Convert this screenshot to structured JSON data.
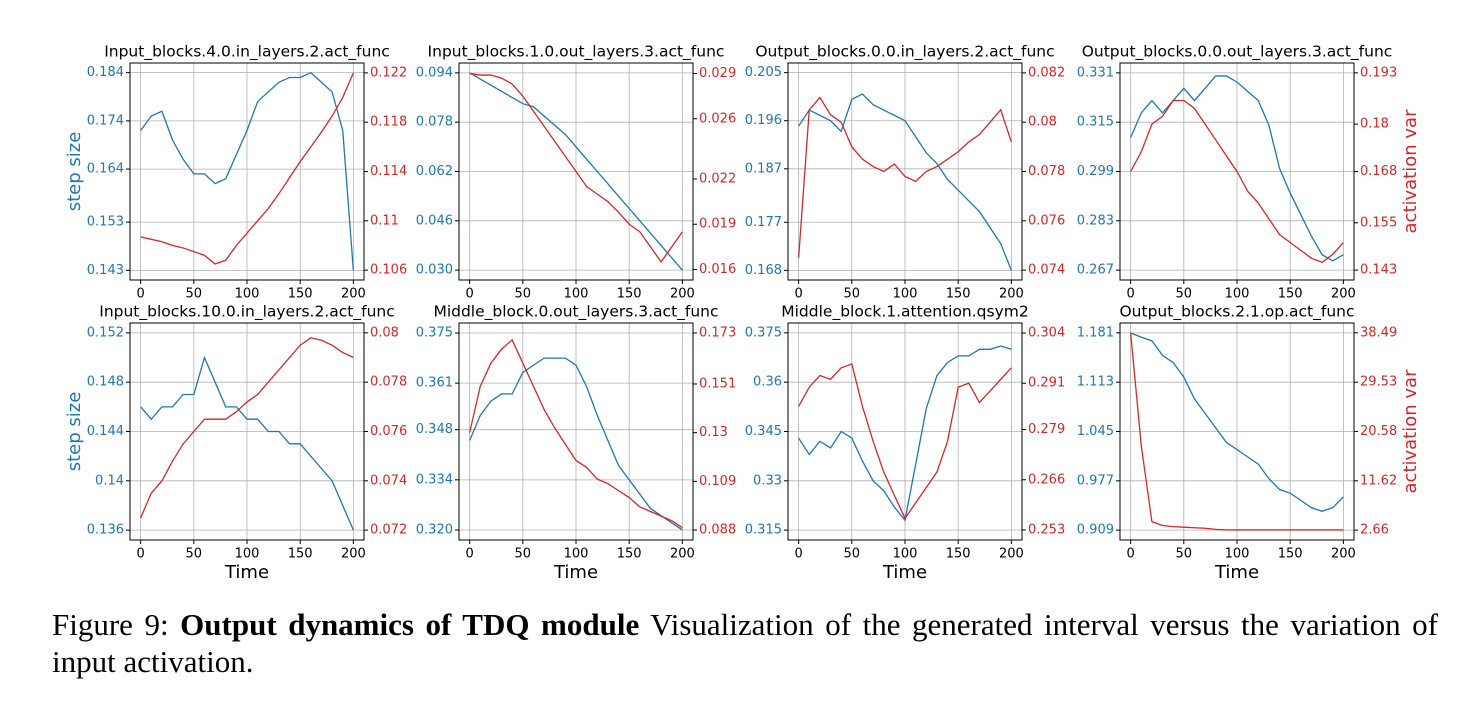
{
  "chart_data": [
    {
      "type": "line",
      "title": "Input_blocks.4.0.in_layers.2.act_func",
      "ylabel": "step size",
      "grid": true,
      "x": [
        0,
        10,
        20,
        30,
        40,
        50,
        60,
        70,
        80,
        90,
        100,
        110,
        120,
        130,
        140,
        150,
        160,
        170,
        180,
        190,
        200
      ],
      "xlim": [
        -10,
        210
      ],
      "xticks": [
        0,
        50,
        100,
        150,
        200
      ],
      "ylim": [
        0.141,
        0.186
      ],
      "yticks": [
        0.143,
        0.153,
        0.164,
        0.174,
        0.184
      ],
      "y2lim": [
        0.1052,
        0.1228
      ],
      "y2ticks": [
        0.106,
        0.11,
        0.114,
        0.118,
        0.122
      ],
      "series": [
        {
          "color": "#1f77b4",
          "values": [
            0.172,
            0.175,
            0.176,
            0.17,
            0.166,
            0.163,
            0.163,
            0.161,
            0.162,
            0.167,
            0.172,
            0.178,
            0.18,
            0.182,
            0.183,
            0.183,
            0.184,
            0.182,
            0.18,
            0.172,
            0.143
          ]
        },
        {
          "color": "#d62728",
          "axis": "y2",
          "values": [
            0.1087,
            0.1085,
            0.1083,
            0.108,
            0.1078,
            0.1075,
            0.1072,
            0.1065,
            0.1068,
            0.108,
            0.109,
            0.11,
            0.111,
            0.1122,
            0.1135,
            0.1148,
            0.116,
            0.1172,
            0.1185,
            0.12,
            0.122
          ]
        }
      ]
    },
    {
      "type": "line",
      "title": "Input_blocks.1.0.out_layers.3.act_func",
      "grid": true,
      "x": [
        0,
        10,
        20,
        30,
        40,
        50,
        60,
        70,
        80,
        90,
        100,
        110,
        120,
        130,
        140,
        150,
        160,
        170,
        180,
        190,
        200
      ],
      "xlim": [
        -10,
        210
      ],
      "xticks": [
        0,
        50,
        100,
        150,
        200
      ],
      "ylim": [
        0.0268,
        0.0972
      ],
      "yticks": [
        {
          "value": 0.03,
          "label": "0.030"
        },
        0.046,
        0.062,
        0.078,
        0.094
      ],
      "y2lim": [
        0.0153,
        0.0297
      ],
      "y2ticks": [
        0.016,
        0.019,
        0.022,
        0.026,
        0.029
      ],
      "series": [
        {
          "color": "#1f77b4",
          "values": [
            0.094,
            0.092,
            0.09,
            0.088,
            0.086,
            0.084,
            0.083,
            0.08,
            0.077,
            0.074,
            0.07,
            0.066,
            0.062,
            0.058,
            0.054,
            0.05,
            0.046,
            0.042,
            0.038,
            0.034,
            0.03
          ]
        },
        {
          "color": "#d62728",
          "axis": "y2",
          "values": [
            0.029,
            0.0289,
            0.0289,
            0.0287,
            0.0283,
            0.0275,
            0.0265,
            0.0255,
            0.0245,
            0.0235,
            0.0225,
            0.0215,
            0.021,
            0.0205,
            0.0198,
            0.019,
            0.0185,
            0.0175,
            0.0165,
            0.0175,
            0.0185
          ]
        }
      ]
    },
    {
      "type": "line",
      "title": "Output_blocks.0.0.in_layers.2.act_func",
      "grid": true,
      "x": [
        0,
        10,
        20,
        30,
        40,
        50,
        60,
        70,
        80,
        90,
        100,
        110,
        120,
        130,
        140,
        150,
        160,
        170,
        180,
        190,
        200
      ],
      "xlim": [
        -10,
        210
      ],
      "xticks": [
        0,
        50,
        100,
        150,
        200
      ],
      "ylim": [
        0.1662,
        0.2068
      ],
      "yticks": [
        0.168,
        0.177,
        0.187,
        0.196,
        0.205
      ],
      "y2lim": [
        0.0736,
        0.0824
      ],
      "y2ticks": [
        0.074,
        0.076,
        0.078,
        0.08,
        0.082
      ],
      "series": [
        {
          "color": "#1f77b4",
          "values": [
            0.195,
            0.198,
            0.197,
            0.196,
            0.194,
            0.2,
            0.201,
            0.199,
            0.198,
            0.197,
            0.196,
            0.193,
            0.19,
            0.188,
            0.185,
            0.183,
            0.181,
            0.179,
            0.176,
            0.173,
            0.168
          ]
        },
        {
          "color": "#d62728",
          "axis": "y2",
          "values": [
            0.0745,
            0.0805,
            0.081,
            0.0803,
            0.08,
            0.079,
            0.0785,
            0.0782,
            0.078,
            0.0783,
            0.0778,
            0.0776,
            0.078,
            0.0782,
            0.0785,
            0.0788,
            0.0792,
            0.0795,
            0.08,
            0.0805,
            0.0792
          ]
        }
      ]
    },
    {
      "type": "line",
      "title": "Output_blocks.0.0.out_layers.3.act_func",
      "y2label": "activation var",
      "grid": true,
      "x": [
        0,
        10,
        20,
        30,
        40,
        50,
        60,
        70,
        80,
        90,
        100,
        110,
        120,
        130,
        140,
        150,
        160,
        170,
        180,
        190,
        200
      ],
      "xlim": [
        -10,
        210
      ],
      "xticks": [
        0,
        50,
        100,
        150,
        200
      ],
      "ylim": [
        0.2638,
        0.3342
      ],
      "yticks": [
        0.267,
        0.283,
        0.299,
        0.315,
        0.331
      ],
      "y2lim": [
        0.1405,
        0.1955
      ],
      "y2ticks": [
        0.143,
        0.155,
        0.168,
        0.18,
        0.193
      ],
      "series": [
        {
          "color": "#1f77b4",
          "values": [
            0.31,
            0.318,
            0.322,
            0.318,
            0.322,
            0.326,
            0.322,
            0.326,
            0.33,
            0.33,
            0.328,
            0.325,
            0.322,
            0.314,
            0.3,
            0.292,
            0.285,
            0.278,
            0.272,
            0.27,
            0.272
          ]
        },
        {
          "color": "#d62728",
          "axis": "y2",
          "values": [
            0.168,
            0.173,
            0.18,
            0.182,
            0.186,
            0.186,
            0.184,
            0.18,
            0.176,
            0.172,
            0.168,
            0.163,
            0.16,
            0.156,
            0.152,
            0.15,
            0.148,
            0.146,
            0.145,
            0.147,
            0.15
          ]
        }
      ]
    },
    {
      "type": "line",
      "title": "Input_blocks.10.0.in_layers.2.act_func",
      "ylabel": "step size",
      "xlabel": "Time",
      "grid": true,
      "x": [
        0,
        10,
        20,
        30,
        40,
        50,
        60,
        70,
        80,
        90,
        100,
        110,
        120,
        130,
        140,
        150,
        160,
        170,
        180,
        190,
        200
      ],
      "xlim": [
        -10,
        210
      ],
      "xticks": [
        0,
        50,
        100,
        150,
        200
      ],
      "ylim": [
        0.1352,
        0.1528
      ],
      "yticks": [
        0.136,
        0.14,
        0.144,
        0.148,
        0.152
      ],
      "y2lim": [
        0.0716,
        0.0804
      ],
      "y2ticks": [
        0.072,
        0.074,
        0.076,
        0.078,
        0.08
      ],
      "series": [
        {
          "color": "#1f77b4",
          "values": [
            0.146,
            0.145,
            0.146,
            0.146,
            0.147,
            0.147,
            0.15,
            0.148,
            0.146,
            0.146,
            0.145,
            0.145,
            0.144,
            0.144,
            0.143,
            0.143,
            0.142,
            0.141,
            0.14,
            0.138,
            0.136
          ]
        },
        {
          "color": "#d62728",
          "axis": "y2",
          "values": [
            0.0725,
            0.0735,
            0.074,
            0.0748,
            0.0755,
            0.076,
            0.0765,
            0.0765,
            0.0765,
            0.0768,
            0.0772,
            0.0775,
            0.078,
            0.0785,
            0.079,
            0.0795,
            0.0798,
            0.0797,
            0.0795,
            0.0792,
            0.079
          ]
        }
      ]
    },
    {
      "type": "line",
      "title": "Middle_block.0.out_layers.3.act_func",
      "xlabel": "Time",
      "grid": true,
      "x": [
        0,
        10,
        20,
        30,
        40,
        50,
        60,
        70,
        80,
        90,
        100,
        110,
        120,
        130,
        140,
        150,
        160,
        170,
        180,
        190,
        200
      ],
      "xlim": [
        -10,
        210
      ],
      "xticks": [
        0,
        50,
        100,
        150,
        200
      ],
      "ylim": [
        0.3172,
        0.3778
      ],
      "yticks": [
        {
          "value": 0.32,
          "label": "0.320"
        },
        0.334,
        0.348,
        0.361,
        0.375
      ],
      "y2lim": [
        0.0837,
        0.1773
      ],
      "y2ticks": [
        0.088,
        0.109,
        0.13,
        0.151,
        0.173
      ],
      "series": [
        {
          "color": "#1f77b4",
          "values": [
            0.345,
            0.352,
            0.356,
            0.358,
            0.358,
            0.364,
            0.366,
            0.368,
            0.368,
            0.368,
            0.366,
            0.36,
            0.352,
            0.345,
            0.338,
            0.334,
            0.33,
            0.326,
            0.324,
            0.322,
            0.32
          ]
        },
        {
          "color": "#d62728",
          "axis": "y2",
          "values": [
            0.13,
            0.15,
            0.16,
            0.166,
            0.17,
            0.16,
            0.15,
            0.14,
            0.132,
            0.125,
            0.118,
            0.115,
            0.11,
            0.108,
            0.105,
            0.102,
            0.098,
            0.096,
            0.094,
            0.092,
            0.089
          ]
        }
      ]
    },
    {
      "type": "line",
      "title": "Middle_block.1.attention.qsym2",
      "xlabel": "Time",
      "grid": true,
      "x": [
        0,
        10,
        20,
        30,
        40,
        50,
        60,
        70,
        80,
        90,
        100,
        110,
        120,
        130,
        140,
        150,
        160,
        170,
        180,
        190,
        200
      ],
      "xlim": [
        -10,
        210
      ],
      "xticks": [
        0,
        50,
        100,
        150,
        200
      ],
      "ylim": [
        0.312,
        0.378
      ],
      "yticks": [
        0.315,
        0.33,
        0.345,
        0.36,
        0.375
      ],
      "y2lim": [
        0.2504,
        0.3066
      ],
      "y2ticks": [
        0.253,
        0.266,
        0.279,
        0.291,
        0.304
      ],
      "series": [
        {
          "color": "#1f77b4",
          "values": [
            0.343,
            0.338,
            0.342,
            0.34,
            0.345,
            0.343,
            0.336,
            0.33,
            0.327,
            0.322,
            0.318,
            0.335,
            0.352,
            0.362,
            0.366,
            0.368,
            0.368,
            0.37,
            0.37,
            0.371,
            0.37
          ]
        },
        {
          "color": "#d62728",
          "axis": "y2",
          "values": [
            0.285,
            0.29,
            0.293,
            0.292,
            0.295,
            0.296,
            0.285,
            0.276,
            0.268,
            0.262,
            0.256,
            0.26,
            0.264,
            0.268,
            0.276,
            0.29,
            0.291,
            0.286,
            0.289,
            0.292,
            0.295
          ]
        }
      ]
    },
    {
      "type": "line",
      "title": "Output_blocks.2.1.op.act_func",
      "xlabel": "Time",
      "y2label": "activation var",
      "grid": true,
      "x": [
        0,
        10,
        20,
        30,
        40,
        50,
        60,
        70,
        80,
        90,
        100,
        110,
        120,
        130,
        140,
        150,
        160,
        170,
        180,
        190,
        200
      ],
      "xlim": [
        -10,
        210
      ],
      "xticks": [
        0,
        50,
        100,
        150,
        200
      ],
      "ylim": [
        0.8954,
        1.1946
      ],
      "yticks": [
        0.909,
        0.977,
        1.045,
        1.113,
        1.181
      ],
      "y2lim": [
        0.87,
        40.28
      ],
      "y2ticks": [
        2.66,
        11.62,
        20.58,
        29.53,
        38.49
      ],
      "series": [
        {
          "color": "#1f77b4",
          "values": [
            1.181,
            1.175,
            1.17,
            1.15,
            1.14,
            1.12,
            1.09,
            1.07,
            1.05,
            1.03,
            1.02,
            1.01,
            1.0,
            0.98,
            0.965,
            0.96,
            0.95,
            0.94,
            0.935,
            0.94,
            0.955
          ]
        },
        {
          "color": "#d62728",
          "axis": "y2",
          "values": [
            38.49,
            18,
            4.2,
            3.5,
            3.3,
            3.2,
            3.1,
            3.0,
            2.8,
            2.7,
            2.7,
            2.7,
            2.7,
            2.7,
            2.7,
            2.7,
            2.7,
            2.7,
            2.7,
            2.7,
            2.7
          ]
        }
      ]
    }
  ],
  "caption": {
    "label": "Figure 9:",
    "title": "Output dynamics of TDQ module",
    "text": "Visualization of the generated interval versus the variation of input activation."
  }
}
